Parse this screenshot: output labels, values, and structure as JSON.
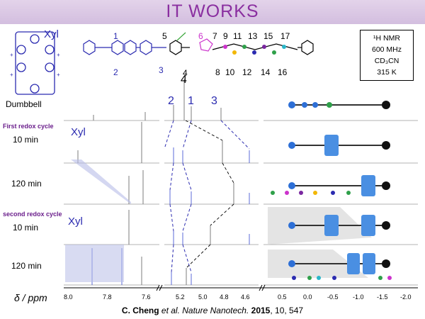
{
  "title": "IT WORKS",
  "molecule_labels": {
    "xyl_top": "Xyl",
    "n1": "1",
    "n2": "2",
    "n3": "3",
    "n4": "4",
    "n5": "5",
    "n6": "6",
    "n7": "7",
    "n8": "8",
    "n9": "9",
    "n10": "10",
    "n11": "11",
    "n12": "12",
    "n13": "13",
    "n14": "14",
    "n15": "15",
    "n16": "16",
    "n17": "17",
    "plus": "+"
  },
  "nmr_info": {
    "line1": "¹H NMR",
    "line2": "600 MHz",
    "line3": "CD₃CN",
    "line4": "315 K"
  },
  "peak_labels": {
    "p2": "2",
    "p4": "4",
    "p1": "1",
    "p3": "3"
  },
  "rows": {
    "dumbbell": "Dumbbell",
    "first_cycle": "First redox cycle",
    "first_10": "10 min",
    "first_120": "120 min",
    "second_cycle": "second redox cycle",
    "second_10": "10 min",
    "second_120": "120 min",
    "xyl1": "Xyl",
    "xyl2": "Xyl"
  },
  "axis": {
    "label": "δ / ppm",
    "left_ticks": [
      "8.0",
      "7.8",
      "7.6"
    ],
    "mid_ticks": [
      "5.2",
      "5.0",
      "4.8",
      "4.6"
    ],
    "right_ticks": [
      "0.5",
      "0.0",
      "-0.5",
      "-1.0",
      "-1.5",
      "-2.0"
    ]
  },
  "citation": {
    "prefix": "C. Cheng ",
    "etal": "et al. Nature Nanotech. ",
    "year": "2015",
    "vol": ", 10, 547"
  }
}
